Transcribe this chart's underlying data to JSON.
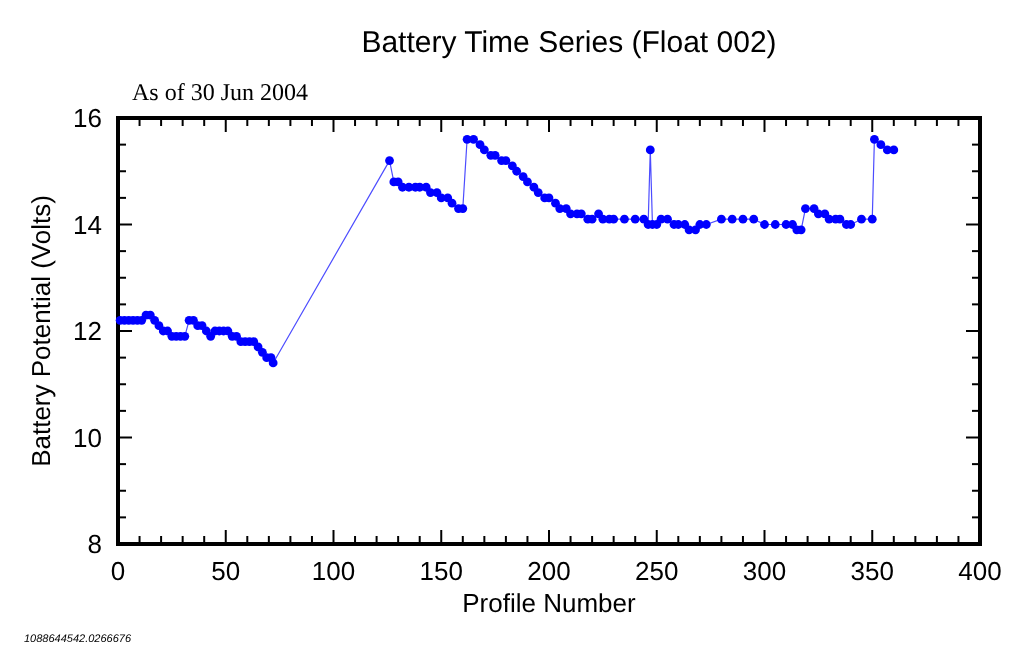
{
  "chart_data": {
    "type": "line",
    "title": "Battery Time Series (Float 002)",
    "subtitle": "As of 30 Jun 2004",
    "xlabel": "Profile Number",
    "ylabel": "Battery Potential (Volts)",
    "annotations": [
      "1088644542.0266676"
    ],
    "xlim": [
      0,
      400
    ],
    "ylim": [
      8,
      16
    ],
    "xticks": [
      0,
      {
        "value": 10,
        "label": null
      },
      {
        "value": 20,
        "label": null
      },
      {
        "value": 30,
        "label": null
      },
      {
        "value": 40,
        "label": null
      },
      50,
      {
        "value": 60,
        "label": null
      },
      {
        "value": 70,
        "label": null
      },
      {
        "value": 80,
        "label": null
      },
      {
        "value": 90,
        "label": null
      },
      100,
      {
        "value": 110,
        "label": null
      },
      {
        "value": 120,
        "label": null
      },
      {
        "value": 130,
        "label": null
      },
      {
        "value": 140,
        "label": null
      },
      150,
      {
        "value": 160,
        "label": null
      },
      {
        "value": 170,
        "label": null
      },
      {
        "value": 180,
        "label": null
      },
      {
        "value": 190,
        "label": null
      },
      200,
      {
        "value": 210,
        "label": null
      },
      {
        "value": 220,
        "label": null
      },
      {
        "value": 230,
        "label": null
      },
      {
        "value": 240,
        "label": null
      },
      250,
      {
        "value": 260,
        "label": null
      },
      {
        "value": 270,
        "label": null
      },
      {
        "value": 280,
        "label": null
      },
      {
        "value": 290,
        "label": null
      },
      300,
      {
        "value": 310,
        "label": null
      },
      {
        "value": 320,
        "label": null
      },
      {
        "value": 330,
        "label": null
      },
      {
        "value": 340,
        "label": null
      },
      350,
      {
        "value": 360,
        "label": null
      },
      {
        "value": 370,
        "label": null
      },
      {
        "value": 380,
        "label": null
      },
      {
        "value": 390,
        "label": null
      },
      400
    ],
    "yticks": [
      8,
      {
        "value": 8.5,
        "label": null
      },
      {
        "value": 9,
        "label": null
      },
      {
        "value": 9.5,
        "label": null
      },
      10,
      {
        "value": 10.5,
        "label": null
      },
      {
        "value": 11,
        "label": null
      },
      {
        "value": 11.5,
        "label": null
      },
      12,
      {
        "value": 12.5,
        "label": null
      },
      {
        "value": 13,
        "label": null
      },
      {
        "value": 13.5,
        "label": null
      },
      14,
      {
        "value": 14.5,
        "label": null
      },
      {
        "value": 15,
        "label": null
      },
      {
        "value": 15.5,
        "label": null
      },
      16
    ],
    "grid": false,
    "marker": "circle",
    "line_style": "solid",
    "series": [
      {
        "color": "#0000ff",
        "x": [
          1,
          3,
          5,
          7,
          9,
          11,
          13,
          15,
          17,
          19,
          21,
          23,
          25,
          27,
          29,
          31,
          33,
          35,
          37,
          39,
          41,
          43,
          45,
          47,
          49,
          51,
          53,
          55,
          57,
          59,
          61,
          63,
          65,
          67,
          69,
          71,
          72,
          126,
          128,
          130,
          132,
          135,
          138,
          140,
          143,
          145,
          148,
          150,
          153,
          155,
          158,
          160,
          162,
          165,
          168,
          170,
          173,
          175,
          178,
          180,
          183,
          185,
          188,
          190,
          193,
          195,
          198,
          200,
          203,
          205,
          208,
          210,
          213,
          215,
          218,
          220,
          223,
          225,
          228,
          230,
          235,
          240,
          244,
          246,
          247,
          248,
          250,
          252,
          255,
          258,
          260,
          263,
          265,
          268,
          270,
          273,
          280,
          285,
          290,
          295,
          300,
          305,
          310,
          313,
          315,
          317,
          319,
          323,
          325,
          328,
          330,
          333,
          335,
          338,
          340,
          345,
          350,
          351,
          354,
          357,
          360
        ],
        "values": [
          12.2,
          12.2,
          12.2,
          12.2,
          12.2,
          12.2,
          12.3,
          12.3,
          12.2,
          12.1,
          12.0,
          12.0,
          11.9,
          11.9,
          11.9,
          11.9,
          12.2,
          12.2,
          12.1,
          12.1,
          12.0,
          11.9,
          12.0,
          12.0,
          12.0,
          12.0,
          11.9,
          11.9,
          11.8,
          11.8,
          11.8,
          11.8,
          11.7,
          11.6,
          11.5,
          11.5,
          11.4,
          15.2,
          14.8,
          14.8,
          14.7,
          14.7,
          14.7,
          14.7,
          14.7,
          14.6,
          14.6,
          14.5,
          14.5,
          14.4,
          14.3,
          14.3,
          15.6,
          15.6,
          15.5,
          15.4,
          15.3,
          15.3,
          15.2,
          15.2,
          15.1,
          15.0,
          14.9,
          14.8,
          14.7,
          14.6,
          14.5,
          14.5,
          14.4,
          14.3,
          14.3,
          14.2,
          14.2,
          14.2,
          14.1,
          14.1,
          14.2,
          14.1,
          14.1,
          14.1,
          14.1,
          14.1,
          14.1,
          14.0,
          15.4,
          14.0,
          14.0,
          14.1,
          14.1,
          14.0,
          14.0,
          14.0,
          13.9,
          13.9,
          14.0,
          14.0,
          14.1,
          14.1,
          14.1,
          14.1,
          14.0,
          14.0,
          14.0,
          14.0,
          13.9,
          13.9,
          14.3,
          14.3,
          14.2,
          14.2,
          14.1,
          14.1,
          14.1,
          14.0,
          14.0,
          14.1,
          14.1,
          15.6,
          15.5,
          15.4,
          15.4
        ]
      }
    ]
  }
}
